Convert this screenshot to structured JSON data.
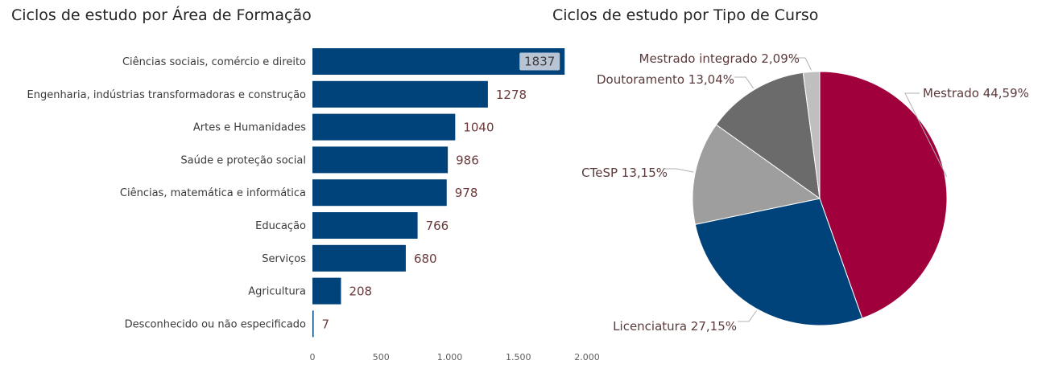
{
  "chart_data": [
    {
      "type": "bar",
      "orientation": "horizontal",
      "title": "Ciclos de estudo por Área de Formação",
      "categories": [
        "Ciências sociais, comércio e direito",
        "Engenharia, indústrias transformadoras e construção",
        "Artes e Humanidades",
        "Saúde e proteção social",
        "Ciências, matemática e informática",
        "Educação",
        "Serviços",
        "Agricultura",
        "Desconhecido ou não especificado"
      ],
      "values": [
        1837,
        1278,
        1040,
        986,
        978,
        766,
        680,
        208,
        7
      ],
      "value_labels": [
        "1837",
        "1278",
        "1040",
        "986",
        "978",
        "766",
        "680",
        "208",
        "7"
      ],
      "xlim": [
        0,
        2000
      ],
      "xticks": [
        0,
        500,
        1000,
        1500,
        2000
      ],
      "xtick_labels": [
        "0",
        "500",
        "1.000",
        "1.500",
        "2.000"
      ],
      "grid": false,
      "color": "#00427A"
    },
    {
      "type": "pie",
      "title": "Ciclos de estudo por Tipo de Curso",
      "slices": [
        {
          "label": "Mestrado",
          "value": 44.59,
          "text": "Mestrado 44,59%",
          "color": "#A0003C"
        },
        {
          "label": "Licenciatura",
          "value": 27.15,
          "text": "Licenciatura 27,15%",
          "color": "#00427A"
        },
        {
          "label": "CTeSP",
          "value": 13.15,
          "text": "CTeSP 13,15%",
          "color": "#9E9E9E"
        },
        {
          "label": "Doutoramento",
          "value": 13.04,
          "text": "Doutoramento 13,04%",
          "color": "#6B6B6B"
        },
        {
          "label": "Mestrado integrado",
          "value": 2.09,
          "text": "Mestrado integrado 2,09%",
          "color": "#BFBFBF"
        }
      ]
    }
  ]
}
